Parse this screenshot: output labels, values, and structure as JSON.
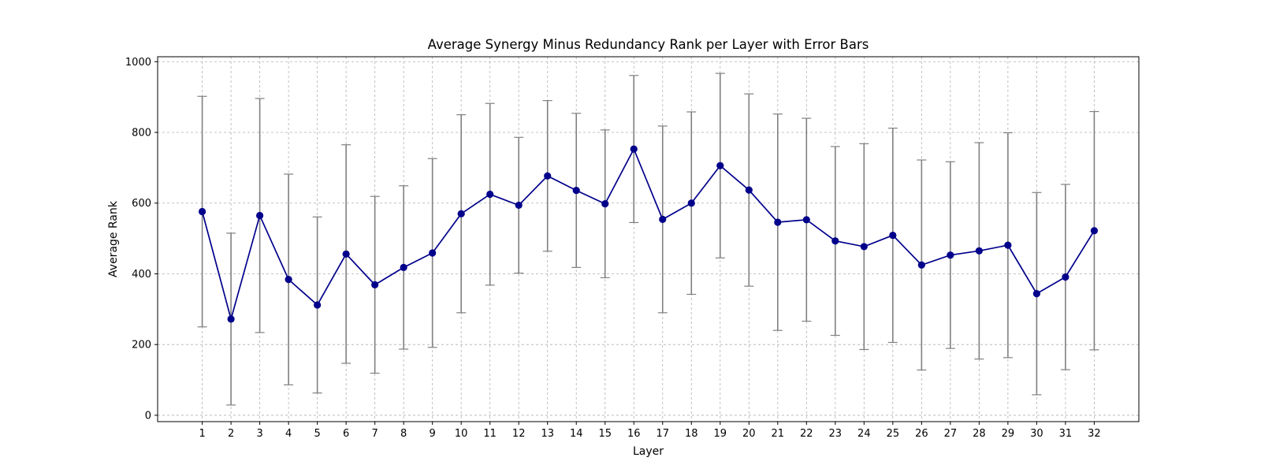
{
  "chart_data": {
    "type": "line",
    "title": "Average Synergy Minus Redundancy Rank per Layer with Error Bars",
    "xlabel": "Layer",
    "ylabel": "Average Rank",
    "x": [
      1,
      2,
      3,
      4,
      5,
      6,
      7,
      8,
      9,
      10,
      11,
      12,
      13,
      14,
      15,
      16,
      17,
      18,
      19,
      20,
      21,
      22,
      23,
      24,
      25,
      26,
      27,
      28,
      29,
      30,
      31,
      32
    ],
    "xticks": [
      "1",
      "2",
      "3",
      "4",
      "5",
      "6",
      "7",
      "8",
      "9",
      "10",
      "11",
      "12",
      "13",
      "14",
      "15",
      "16",
      "17",
      "18",
      "19",
      "20",
      "21",
      "22",
      "23",
      "24",
      "25",
      "26",
      "27",
      "28",
      "29",
      "30",
      "31",
      "32"
    ],
    "yticks": [
      "0",
      "200",
      "400",
      "600",
      "800",
      "1000"
    ],
    "ylim": [
      -18,
      1014
    ],
    "xlim": [
      -0.55,
      33.55
    ],
    "grid": true,
    "series": [
      {
        "values": [
          576,
          272,
          565,
          384,
          312,
          456,
          369,
          418,
          459,
          570,
          625,
          594,
          677,
          636,
          598,
          753,
          554,
          600,
          706,
          637,
          546,
          553,
          493,
          477,
          509,
          425,
          453,
          465,
          481,
          344,
          391,
          522
        ],
        "error": [
          326,
          243,
          331,
          298,
          249,
          309,
          250,
          231,
          267,
          280,
          257,
          192,
          213,
          218,
          209,
          208,
          264,
          258,
          261,
          272,
          306,
          287,
          267,
          291,
          303,
          297,
          264,
          306,
          318,
          286,
          262,
          337
        ],
        "line_color": "#00008b",
        "marker_color": "#00008b",
        "error_color": "#808080"
      }
    ]
  }
}
